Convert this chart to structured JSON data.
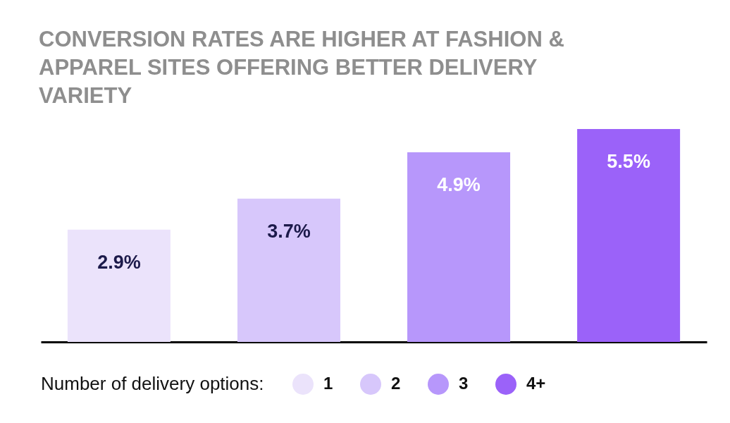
{
  "chart_data": {
    "type": "bar",
    "title": "CONVERSION RATES ARE HIGHER AT FASHION & APPAREL SITES OFFERING BETTER DELIVERY VARIETY",
    "categories": [
      null,
      null,
      null,
      null
    ],
    "series": [
      {
        "name": "1",
        "color": "#ebe3fb",
        "values": [
          2.9,
          null,
          null,
          null
        ],
        "value_labels": [
          "2.9%",
          null,
          null,
          null
        ]
      },
      {
        "name": "2",
        "color": "#d7c7fb",
        "values": [
          null,
          3.7,
          null,
          null
        ],
        "value_labels": [
          null,
          "3.7%",
          null,
          null
        ]
      },
      {
        "name": "3",
        "color": "#b797fb",
        "values": [
          null,
          null,
          4.9,
          null
        ],
        "value_labels": [
          null,
          null,
          "4.9%",
          null
        ]
      },
      {
        "name": "4+",
        "color": "#9b62f9",
        "values": [
          null,
          null,
          null,
          5.5
        ],
        "value_labels": [
          null,
          null,
          null,
          "5.5%"
        ]
      }
    ],
    "legend": "bottom",
    "legend_title": "Number of delivery options:",
    "stacked": true,
    "relative": false,
    "tick_labels": false
  }
}
